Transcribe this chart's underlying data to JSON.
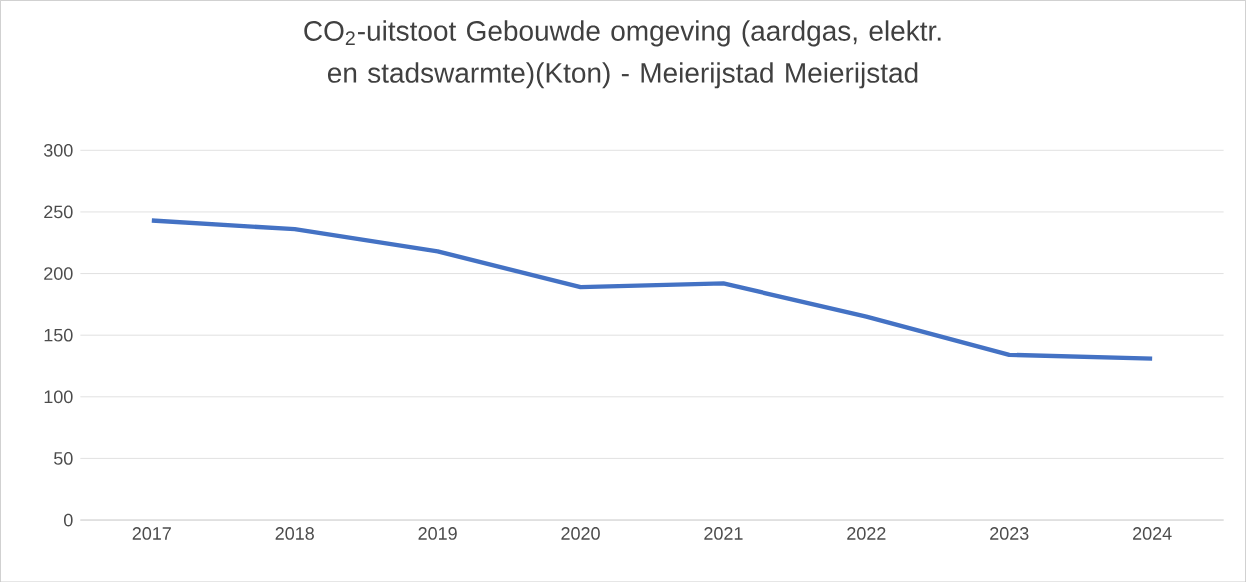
{
  "chart_data": {
    "type": "line",
    "title": "CO$_{2}$-uitstoot Gebouwde omgeving (aardgas, elektr. en stadswarmte)(Kton) - Meierijstad Meierijstad",
    "categories": [
      "2017",
      "2018",
      "2019",
      "2020",
      "2021",
      "2022",
      "2023",
      "2024"
    ],
    "series": [
      {
        "color": "#4472c4",
        "values": [
          243,
          236,
          218,
          189,
          192,
          165,
          134,
          131
        ]
      }
    ],
    "ylim": [
      0,
      300
    ],
    "yticks": [
      0,
      50,
      100,
      150,
      200,
      250,
      300
    ],
    "grid": "y",
    "marker": "none",
    "line_style": "solid"
  }
}
